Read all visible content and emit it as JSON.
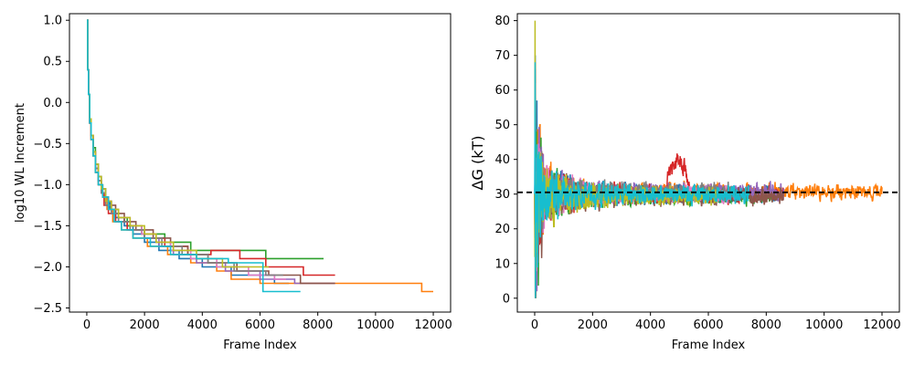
{
  "chart_data": [
    {
      "type": "line",
      "xlabel": "Frame Index",
      "ylabel": "log10 WL Increment",
      "xlim": [
        -600,
        12600
      ],
      "ylim": [
        -2.55,
        1.08
      ],
      "xticks": [
        0,
        2000,
        4000,
        6000,
        8000,
        10000,
        12000
      ],
      "yticks": [
        -2.5,
        -2.0,
        -1.5,
        -1.0,
        -0.5,
        0.0,
        0.5,
        1.0
      ],
      "ytick_labels": [
        "−2.5",
        "−2.0",
        "−1.5",
        "−1.0",
        "−0.5",
        "0.0",
        "0.5",
        "1.0"
      ],
      "grid": false,
      "series": [
        {
          "color": "#1f77b4",
          "steps": [
            [
              0,
              1.0
            ],
            [
              30,
              0.4
            ],
            [
              60,
              0.1
            ],
            [
              100,
              -0.2
            ],
            [
              150,
              -0.4
            ],
            [
              220,
              -0.6
            ],
            [
              300,
              -0.8
            ],
            [
              400,
              -0.95
            ],
            [
              500,
              -1.1
            ],
            [
              650,
              -1.2
            ],
            [
              800,
              -1.3
            ],
            [
              1000,
              -1.4
            ],
            [
              1300,
              -1.5
            ],
            [
              1600,
              -1.6
            ],
            [
              2000,
              -1.7
            ],
            [
              2500,
              -1.8
            ],
            [
              3200,
              -1.9
            ],
            [
              4000,
              -2.0
            ],
            [
              5000,
              -2.1
            ],
            [
              6500,
              -2.2
            ],
            [
              7000,
              -2.2
            ]
          ]
        },
        {
          "color": "#ff7f0e",
          "steps": [
            [
              0,
              1.0
            ],
            [
              30,
              0.4
            ],
            [
              60,
              0.1
            ],
            [
              100,
              -0.25
            ],
            [
              150,
              -0.45
            ],
            [
              220,
              -0.65
            ],
            [
              300,
              -0.85
            ],
            [
              400,
              -1.0
            ],
            [
              550,
              -1.15
            ],
            [
              700,
              -1.3
            ],
            [
              900,
              -1.45
            ],
            [
              1200,
              -1.55
            ],
            [
              1600,
              -1.65
            ],
            [
              2100,
              -1.75
            ],
            [
              2800,
              -1.85
            ],
            [
              3600,
              -1.95
            ],
            [
              4500,
              -2.05
            ],
            [
              5000,
              -2.15
            ],
            [
              6000,
              -2.2
            ],
            [
              8900,
              -2.2
            ],
            [
              11600,
              -2.3
            ],
            [
              12000,
              -2.3
            ]
          ]
        },
        {
          "color": "#2ca02c",
          "steps": [
            [
              0,
              1.0
            ],
            [
              30,
              0.4
            ],
            [
              60,
              0.1
            ],
            [
              100,
              -0.2
            ],
            [
              150,
              -0.4
            ],
            [
              220,
              -0.55
            ],
            [
              300,
              -0.75
            ],
            [
              400,
              -0.9
            ],
            [
              500,
              -1.05
            ],
            [
              650,
              -1.2
            ],
            [
              850,
              -1.3
            ],
            [
              1100,
              -1.4
            ],
            [
              1400,
              -1.5
            ],
            [
              1900,
              -1.6
            ],
            [
              2700,
              -1.7
            ],
            [
              3600,
              -1.8
            ],
            [
              6200,
              -1.9
            ],
            [
              8200,
              -1.9
            ]
          ]
        },
        {
          "color": "#d62728",
          "steps": [
            [
              0,
              1.0
            ],
            [
              30,
              0.4
            ],
            [
              60,
              0.1
            ],
            [
              100,
              -0.25
            ],
            [
              150,
              -0.45
            ],
            [
              220,
              -0.6
            ],
            [
              300,
              -0.8
            ],
            [
              400,
              -0.95
            ],
            [
              500,
              -1.1
            ],
            [
              600,
              -1.25
            ],
            [
              750,
              -1.35
            ],
            [
              1000,
              -1.45
            ],
            [
              1400,
              -1.55
            ],
            [
              2000,
              -1.65
            ],
            [
              2700,
              -1.75
            ],
            [
              3500,
              -1.85
            ],
            [
              4300,
              -1.8
            ],
            [
              5300,
              -1.9
            ],
            [
              6200,
              -2.0
            ],
            [
              7500,
              -2.1
            ],
            [
              8600,
              -2.1
            ]
          ]
        },
        {
          "color": "#9467bd",
          "steps": [
            [
              0,
              1.0
            ],
            [
              30,
              0.4
            ],
            [
              60,
              0.1
            ],
            [
              100,
              -0.2
            ],
            [
              150,
              -0.4
            ],
            [
              220,
              -0.6
            ],
            [
              300,
              -0.75
            ],
            [
              400,
              -0.9
            ],
            [
              500,
              -1.05
            ],
            [
              650,
              -1.2
            ],
            [
              850,
              -1.35
            ],
            [
              1100,
              -1.45
            ],
            [
              1500,
              -1.55
            ],
            [
              2000,
              -1.65
            ],
            [
              2500,
              -1.75
            ],
            [
              3000,
              -1.85
            ],
            [
              3800,
              -1.95
            ],
            [
              4800,
              -2.05
            ],
            [
              6000,
              -2.15
            ],
            [
              7200,
              -2.2
            ],
            [
              8600,
              -2.2
            ]
          ]
        },
        {
          "color": "#8c564b",
          "steps": [
            [
              0,
              1.0
            ],
            [
              30,
              0.4
            ],
            [
              60,
              0.1
            ],
            [
              100,
              -0.25
            ],
            [
              150,
              -0.45
            ],
            [
              220,
              -0.65
            ],
            [
              300,
              -0.85
            ],
            [
              400,
              -1.0
            ],
            [
              550,
              -1.15
            ],
            [
              750,
              -1.25
            ],
            [
              1000,
              -1.35
            ],
            [
              1300,
              -1.45
            ],
            [
              1700,
              -1.55
            ],
            [
              2300,
              -1.65
            ],
            [
              2900,
              -1.75
            ],
            [
              3500,
              -1.85
            ],
            [
              4200,
              -1.95
            ],
            [
              5200,
              -2.05
            ],
            [
              6300,
              -2.1
            ],
            [
              7400,
              -2.2
            ],
            [
              8600,
              -2.2
            ]
          ]
        },
        {
          "color": "#e377c2",
          "steps": [
            [
              0,
              1.0
            ],
            [
              30,
              0.4
            ],
            [
              60,
              0.1
            ],
            [
              100,
              -0.2
            ],
            [
              150,
              -0.4
            ],
            [
              220,
              -0.6
            ],
            [
              300,
              -0.8
            ],
            [
              400,
              -0.95
            ],
            [
              500,
              -1.1
            ],
            [
              650,
              -1.2
            ],
            [
              850,
              -1.3
            ],
            [
              1100,
              -1.4
            ],
            [
              1500,
              -1.5
            ],
            [
              1900,
              -1.6
            ],
            [
              2400,
              -1.7
            ],
            [
              2900,
              -1.8
            ],
            [
              3600,
              -1.9
            ],
            [
              4500,
              -2.0
            ],
            [
              5600,
              -2.1
            ],
            [
              6500,
              -2.15
            ],
            [
              6900,
              -2.15
            ]
          ]
        },
        {
          "color": "#7f7f7f",
          "steps": [
            [
              0,
              1.0
            ],
            [
              30,
              0.4
            ],
            [
              60,
              0.1
            ],
            [
              100,
              -0.25
            ],
            [
              150,
              -0.45
            ],
            [
              220,
              -0.6
            ],
            [
              300,
              -0.8
            ],
            [
              400,
              -0.95
            ],
            [
              500,
              -1.1
            ],
            [
              650,
              -1.25
            ],
            [
              850,
              -1.35
            ],
            [
              1100,
              -1.45
            ],
            [
              1500,
              -1.55
            ],
            [
              2000,
              -1.65
            ],
            [
              2600,
              -1.75
            ],
            [
              3300,
              -1.85
            ],
            [
              4200,
              -1.95
            ],
            [
              5100,
              -2.05
            ],
            [
              6200,
              -2.1
            ],
            [
              6800,
              -2.1
            ]
          ]
        },
        {
          "color": "#bcbd22",
          "steps": [
            [
              0,
              1.0
            ],
            [
              30,
              0.4
            ],
            [
              60,
              0.1
            ],
            [
              100,
              -0.2
            ],
            [
              150,
              -0.4
            ],
            [
              220,
              -0.6
            ],
            [
              300,
              -0.75
            ],
            [
              400,
              -0.9
            ],
            [
              500,
              -1.05
            ],
            [
              650,
              -1.2
            ],
            [
              850,
              -1.3
            ],
            [
              1100,
              -1.4
            ],
            [
              1500,
              -1.5
            ],
            [
              2000,
              -1.6
            ],
            [
              2400,
              -1.7
            ],
            [
              3000,
              -1.8
            ],
            [
              3800,
              -1.9
            ],
            [
              4700,
              -2.0
            ],
            [
              5700,
              -2.0
            ],
            [
              6300,
              -2.0
            ]
          ]
        },
        {
          "color": "#17becf",
          "steps": [
            [
              0,
              1.0
            ],
            [
              30,
              0.4
            ],
            [
              60,
              0.1
            ],
            [
              100,
              -0.25
            ],
            [
              150,
              -0.45
            ],
            [
              220,
              -0.65
            ],
            [
              300,
              -0.85
            ],
            [
              400,
              -1.0
            ],
            [
              550,
              -1.15
            ],
            [
              750,
              -1.3
            ],
            [
              950,
              -1.45
            ],
            [
              1200,
              -1.55
            ],
            [
              1600,
              -1.65
            ],
            [
              2200,
              -1.75
            ],
            [
              2900,
              -1.85
            ],
            [
              3800,
              -1.9
            ],
            [
              4900,
              -1.95
            ],
            [
              6100,
              -2.3
            ],
            [
              7400,
              -2.3
            ]
          ]
        }
      ]
    },
    {
      "type": "line",
      "xlabel": "Frame Index",
      "ylabel": "ΔG (kT)",
      "xlim": [
        -600,
        12600
      ],
      "ylim": [
        -4,
        82
      ],
      "xticks": [
        0,
        2000,
        4000,
        6000,
        8000,
        10000,
        12000
      ],
      "yticks": [
        0,
        10,
        20,
        30,
        40,
        50,
        60,
        70,
        80
      ],
      "grid": false,
      "reference_line": {
        "y": 30.5,
        "style": "dashed",
        "color": "#000000"
      },
      "series": [
        {
          "color": "#1f77b4",
          "end": 8500,
          "spike": 70,
          "seed": 1
        },
        {
          "color": "#ff7f0e",
          "end": 12000,
          "spike": 68,
          "seed": 2
        },
        {
          "color": "#2ca02c",
          "end": 8200,
          "spike": 64,
          "seed": 3
        },
        {
          "color": "#d62728",
          "end": 8600,
          "spike": 66,
          "seed": 4,
          "bump": {
            "from": 4500,
            "to": 5400,
            "level": 40
          }
        },
        {
          "color": "#9467bd",
          "end": 8600,
          "spike": 60,
          "seed": 5
        },
        {
          "color": "#8c564b",
          "end": 8600,
          "spike": 58,
          "seed": 6
        },
        {
          "color": "#e377c2",
          "end": 6900,
          "spike": 62,
          "seed": 7
        },
        {
          "color": "#7f7f7f",
          "end": 6800,
          "spike": 56,
          "seed": 8
        },
        {
          "color": "#bcbd22",
          "end": 6300,
          "spike": 80,
          "seed": 9
        },
        {
          "color": "#17becf",
          "end": 7400,
          "spike": 68,
          "seed": 10
        }
      ]
    }
  ]
}
